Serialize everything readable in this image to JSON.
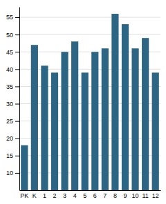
{
  "chart_data": {
    "type": "bar",
    "categories": [
      "PK",
      "K",
      "1",
      "2",
      "3",
      "4",
      "5",
      "6",
      "7",
      "8",
      "9",
      "10",
      "11",
      "12"
    ],
    "values": [
      18,
      47,
      41,
      39,
      45,
      48,
      39,
      45,
      46,
      56,
      53,
      46,
      49,
      39
    ],
    "color": "#2d6584",
    "ylim": [
      5,
      58
    ],
    "yticks": [
      10,
      15,
      20,
      25,
      30,
      35,
      40,
      45,
      50,
      55
    ],
    "grid": true
  }
}
